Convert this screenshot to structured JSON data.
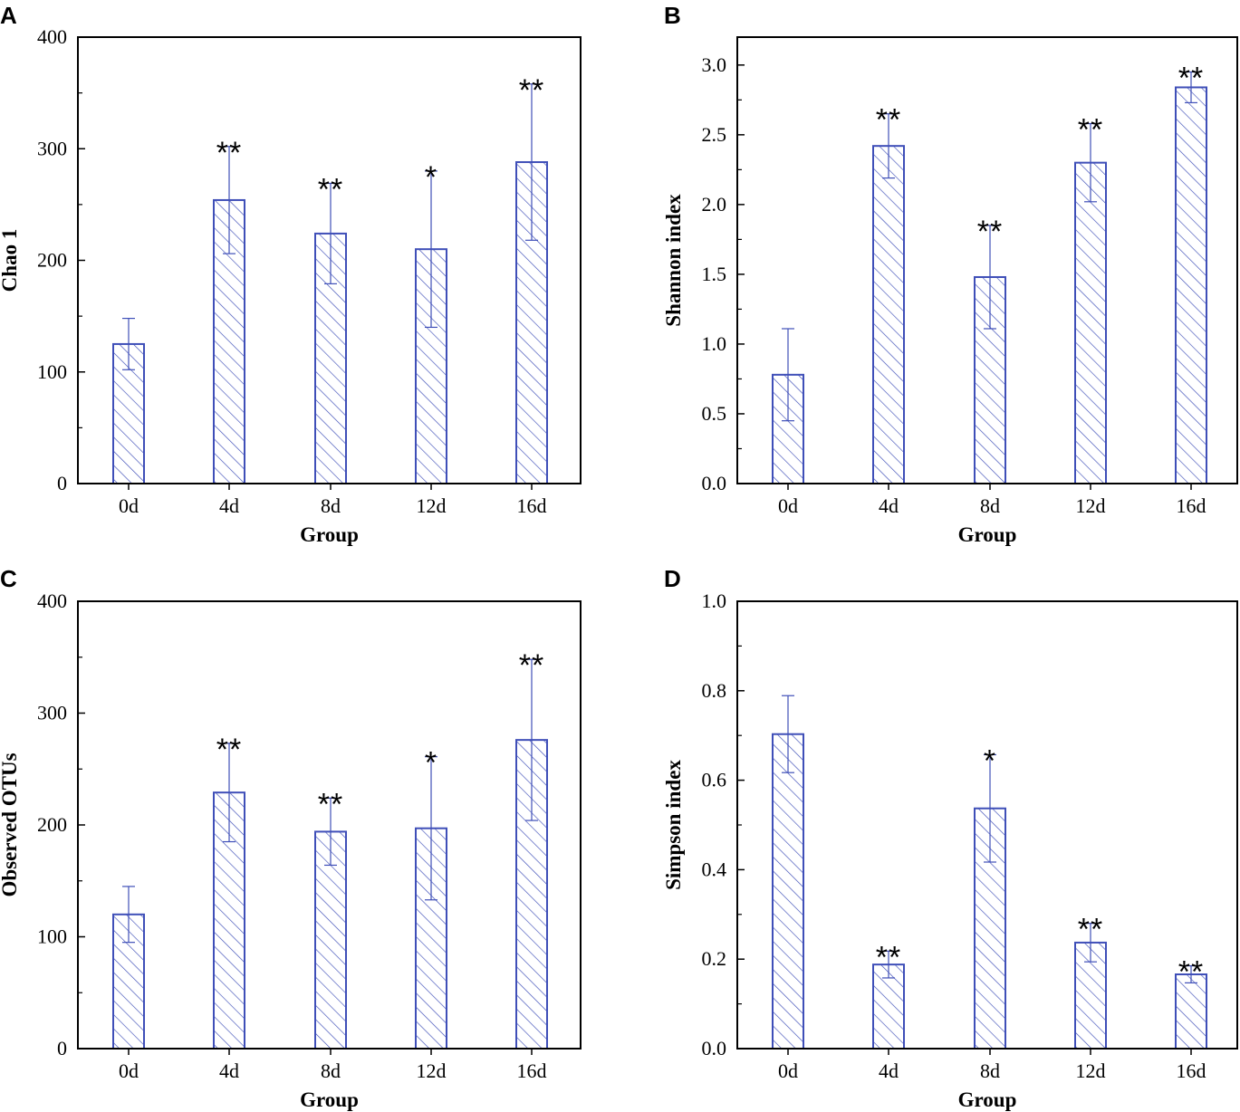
{
  "colors": {
    "bar": "#3f4fb8",
    "axis": "#000000"
  },
  "chart_data": [
    {
      "panel": "A",
      "type": "bar",
      "categories": [
        "0d",
        "4d",
        "8d",
        "12d",
        "16d"
      ],
      "values": [
        125,
        254,
        224,
        210,
        288
      ],
      "errors": [
        23,
        48,
        45,
        70,
        70
      ],
      "significance": [
        "",
        "**",
        "**",
        "*",
        "**"
      ],
      "xlabel": "Group",
      "ylabel": "Chao 1",
      "ylim": [
        0,
        400
      ],
      "yticks": [
        "0",
        "100",
        "200",
        "300",
        "400"
      ],
      "ytick_values": [
        0,
        100,
        200,
        300,
        400
      ]
    },
    {
      "panel": "B",
      "type": "bar",
      "categories": [
        "0d",
        "4d",
        "8d",
        "12d",
        "16d"
      ],
      "values": [
        0.78,
        2.42,
        1.48,
        2.3,
        2.84
      ],
      "errors": [
        0.33,
        0.23,
        0.37,
        0.28,
        0.11
      ],
      "significance": [
        "",
        "**",
        "**",
        "**",
        "**"
      ],
      "xlabel": "Group",
      "ylabel": "Shannon index",
      "ylim": [
        0,
        3.2
      ],
      "yticks": [
        "0.0",
        "0.5",
        "1.0",
        "1.5",
        "2.0",
        "2.5",
        "3.0"
      ],
      "ytick_values": [
        0,
        0.5,
        1.0,
        1.5,
        2.0,
        2.5,
        3.0
      ]
    },
    {
      "panel": "C",
      "type": "bar",
      "categories": [
        "0d",
        "4d",
        "8d",
        "12d",
        "16d"
      ],
      "values": [
        120,
        229,
        194,
        197,
        276
      ],
      "errors": [
        25,
        44,
        30,
        64,
        72
      ],
      "significance": [
        "",
        "**",
        "**",
        "*",
        "**"
      ],
      "xlabel": "Group",
      "ylabel": "Observed OTUs",
      "ylim": [
        0,
        400
      ],
      "yticks": [
        "0",
        "100",
        "200",
        "300",
        "400"
      ],
      "ytick_values": [
        0,
        100,
        200,
        300,
        400
      ]
    },
    {
      "panel": "D",
      "type": "bar",
      "categories": [
        "0d",
        "4d",
        "8d",
        "12d",
        "16d"
      ],
      "values": [
        0.703,
        0.188,
        0.537,
        0.237,
        0.166
      ],
      "errors": [
        0.086,
        0.03,
        0.12,
        0.043,
        0.019
      ],
      "significance": [
        "",
        "**",
        "*",
        "**",
        "**"
      ],
      "xlabel": "Group",
      "ylabel": "Simpson index",
      "ylim": [
        0,
        1.0
      ],
      "yticks": [
        "0.0",
        "0.2",
        "0.4",
        "0.6",
        "0.8",
        "1.0"
      ],
      "ytick_values": [
        0,
        0.2,
        0.4,
        0.6,
        0.8,
        1.0
      ]
    }
  ]
}
